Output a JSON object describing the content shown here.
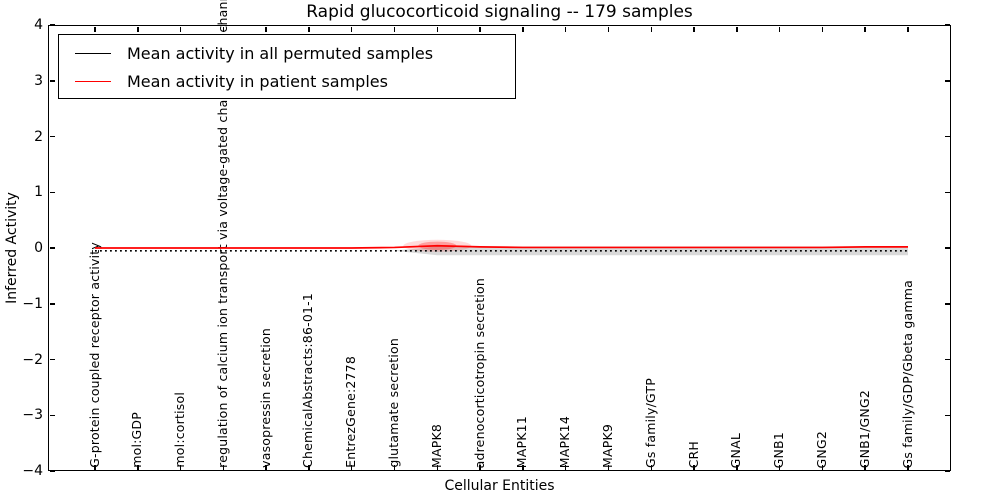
{
  "figure": {
    "title": "Rapid glucocorticoid signaling -- 179 samples",
    "xlabel": "Cellular Entities",
    "ylabel": "Inferred Activity"
  },
  "legend": {
    "position": "upper left",
    "entries": [
      {
        "label": "Mean activity in all permuted samples",
        "color": "#000000",
        "style": "dotted"
      },
      {
        "label": "Mean activity in patient samples",
        "color": "#ff0000",
        "style": "solid"
      }
    ]
  },
  "y_axis": {
    "ticks": [
      "4",
      "3",
      "2",
      "1",
      "0",
      "−1",
      "−2",
      "−3",
      "−4"
    ]
  },
  "clipped_top_label": "channels",
  "chart_data": {
    "type": "line",
    "title": "Rapid glucocorticoid signaling -- 179 samples",
    "xlabel": "Cellular Entities",
    "ylabel": "Inferred Activity",
    "ylim": [
      -4,
      4
    ],
    "grid": false,
    "legend_position": "upper left",
    "categories": [
      "G-protein coupled receptor activity",
      "mol:GDP",
      "mol:cortisol",
      "regulation of calcium ion transport via voltage-gated channels",
      "vasopressin secretion",
      "ChemicalAbstracts:86-01-1",
      "EntrezGene:2778",
      "glutamate secretion",
      "MAPK8",
      "adrenocorticotropin secretion",
      "MAPK11",
      "MAPK14",
      "MAPK9",
      "Gs family/GTP",
      "CRH",
      "GNAL",
      "GNB1",
      "GNG2",
      "GNB1/GNG2",
      "Gs family/GDP/Gbeta gamma"
    ],
    "series": [
      {
        "name": "Mean activity in all permuted samples",
        "color": "#000000",
        "style": "dotted",
        "values": [
          -0.05,
          -0.05,
          -0.05,
          -0.05,
          -0.05,
          -0.05,
          -0.05,
          -0.05,
          -0.05,
          -0.05,
          -0.05,
          -0.05,
          -0.05,
          -0.05,
          -0.05,
          -0.05,
          -0.05,
          -0.05,
          -0.05,
          -0.05
        ]
      },
      {
        "name": "Mean activity in patient samples",
        "color": "#ff0000",
        "style": "solid",
        "values": [
          0.0,
          0.0,
          0.0,
          0.0,
          0.0,
          0.0,
          0.0,
          0.01,
          0.04,
          0.02,
          0.01,
          0.01,
          0.01,
          0.01,
          0.01,
          0.01,
          0.01,
          0.01,
          0.02,
          0.02
        ]
      }
    ],
    "uncertainty": {
      "permuted_band": {
        "fade_from_index": 7,
        "full_from_index": 8,
        "end_index": 19,
        "half_width_units": 0.08,
        "color": "#d9d9d9"
      },
      "patient_bump": {
        "center_index": 8,
        "half_width_units": 0.1,
        "color": "#ff0000"
      }
    }
  }
}
